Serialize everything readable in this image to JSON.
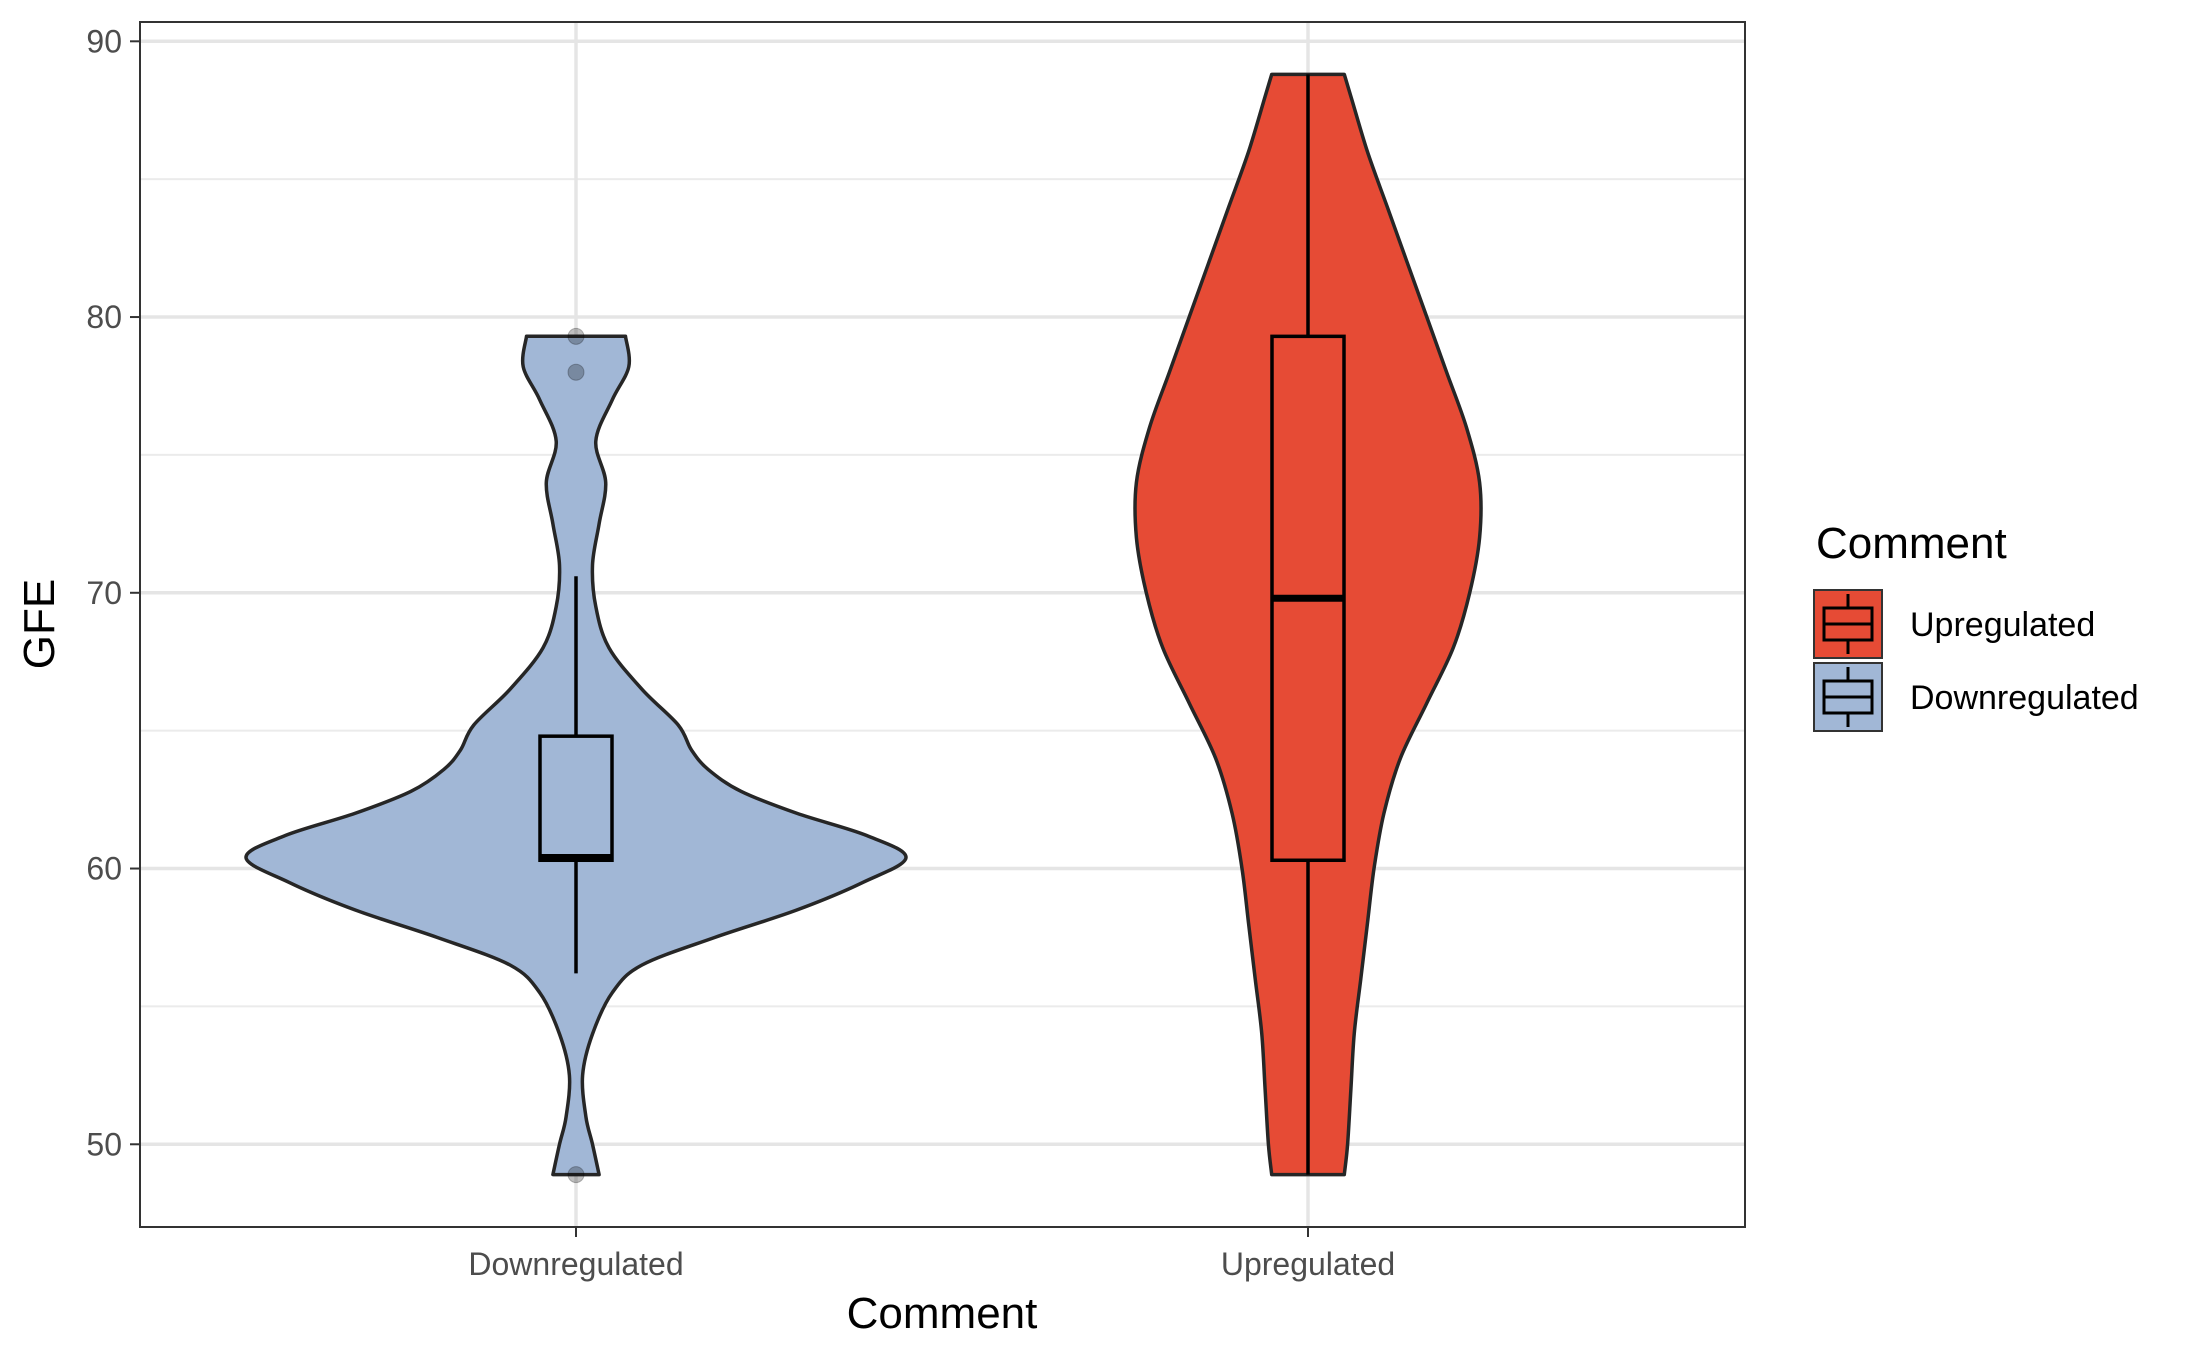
{
  "chart_data": {
    "type": "violin",
    "xlabel": "Comment",
    "ylabel": "GFE",
    "ylim": [
      47.0,
      90.7
    ],
    "yticks": [
      50,
      60,
      70,
      80,
      90
    ],
    "categories": [
      "Downregulated",
      "Upregulated"
    ],
    "grid": true,
    "legend": {
      "title": "Comment",
      "placement": "right",
      "entries": [
        {
          "label": "Upregulated",
          "color": "#E64B35"
        },
        {
          "label": "Downregulated",
          "color": "#A1B7D6"
        }
      ]
    },
    "series": [
      {
        "category": "Downregulated",
        "color": "#A1B7D6",
        "range": [
          48.9,
          79.3
        ],
        "box": {
          "lower_whisker": 56.2,
          "q1": 60.3,
          "median": 60.4,
          "q3": 64.8,
          "upper_whisker": 70.6
        },
        "outliers": [
          79.3,
          78.0,
          48.9
        ],
        "density_profile": [
          [
            48.9,
            0.07
          ],
          [
            50.0,
            0.05
          ],
          [
            51.0,
            0.03
          ],
          [
            52.5,
            0.02
          ],
          [
            54.0,
            0.05
          ],
          [
            55.5,
            0.11
          ],
          [
            56.5,
            0.2
          ],
          [
            57.5,
            0.42
          ],
          [
            58.5,
            0.67
          ],
          [
            59.5,
            0.87
          ],
          [
            60.4,
            1.0
          ],
          [
            61.2,
            0.88
          ],
          [
            62.0,
            0.67
          ],
          [
            62.8,
            0.5
          ],
          [
            63.6,
            0.4
          ],
          [
            64.3,
            0.35
          ],
          [
            65.2,
            0.31
          ],
          [
            66.5,
            0.2
          ],
          [
            68.0,
            0.1
          ],
          [
            69.5,
            0.06
          ],
          [
            71.0,
            0.05
          ],
          [
            72.5,
            0.07
          ],
          [
            74.0,
            0.09
          ],
          [
            75.5,
            0.06
          ],
          [
            77.0,
            0.11
          ],
          [
            78.2,
            0.16
          ],
          [
            79.3,
            0.15
          ]
        ]
      },
      {
        "category": "Upregulated",
        "color": "#E64B35",
        "range": [
          48.9,
          88.8
        ],
        "box": {
          "lower_whisker": 48.9,
          "q1": 60.3,
          "median": 69.8,
          "q3": 79.3,
          "upper_whisker": 88.8
        },
        "outliers": [],
        "density_profile": [
          [
            48.9,
            0.11
          ],
          [
            50.0,
            0.12
          ],
          [
            52.0,
            0.13
          ],
          [
            54.0,
            0.14
          ],
          [
            56.0,
            0.16
          ],
          [
            58.0,
            0.18
          ],
          [
            60.0,
            0.2
          ],
          [
            62.0,
            0.23
          ],
          [
            64.0,
            0.28
          ],
          [
            66.0,
            0.36
          ],
          [
            68.0,
            0.44
          ],
          [
            70.0,
            0.49
          ],
          [
            72.0,
            0.52
          ],
          [
            74.0,
            0.52
          ],
          [
            76.0,
            0.48
          ],
          [
            78.0,
            0.42
          ],
          [
            80.0,
            0.36
          ],
          [
            82.0,
            0.3
          ],
          [
            84.0,
            0.24
          ],
          [
            86.0,
            0.18
          ],
          [
            88.0,
            0.13
          ],
          [
            88.8,
            0.11
          ]
        ]
      }
    ]
  }
}
